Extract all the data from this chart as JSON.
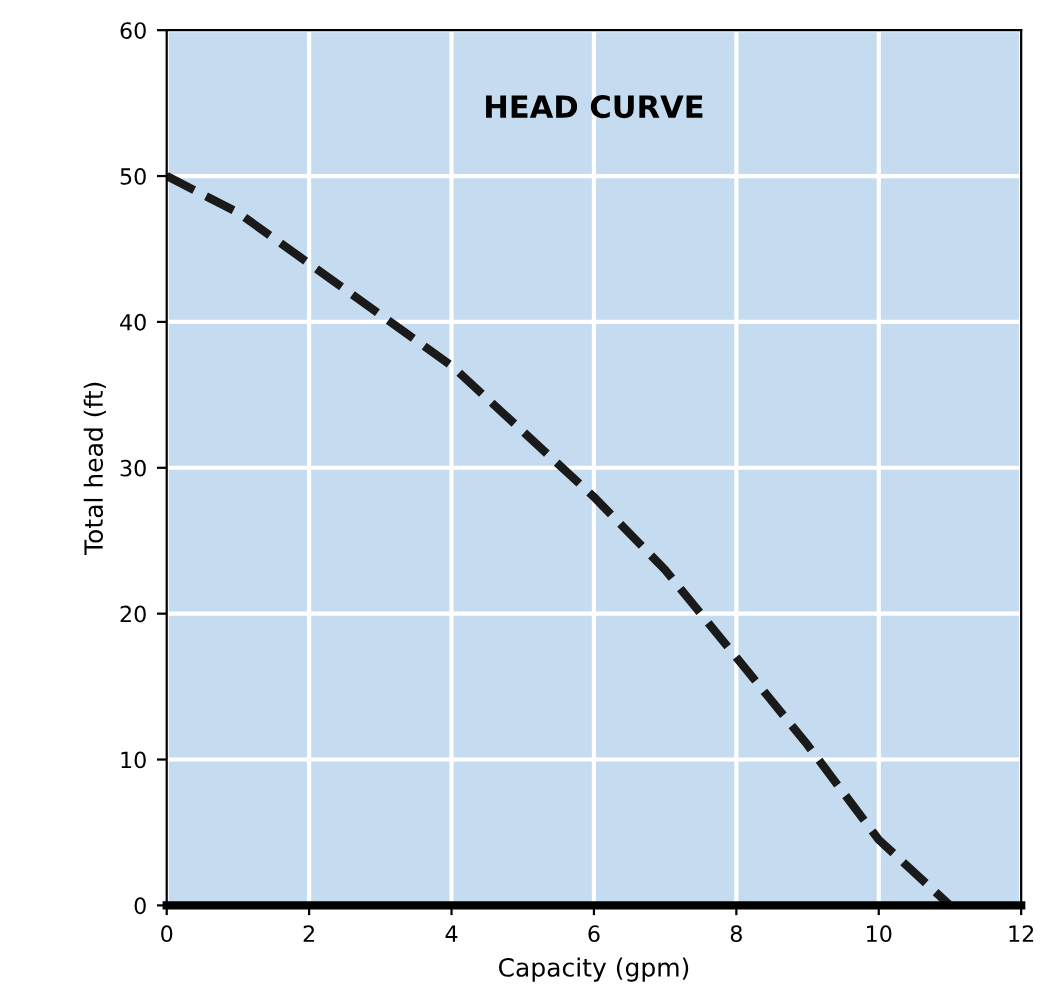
{
  "chart_data": {
    "type": "line",
    "title": "HEAD CURVE",
    "xlabel": "Capacity (gpm)",
    "ylabel": "Total head (ft)",
    "x": [
      0,
      1,
      2,
      3,
      4,
      5,
      6,
      7,
      8,
      9,
      10,
      11
    ],
    "series": [
      {
        "color": "#1a1a1a",
        "values": [
          50,
          47.5,
          44,
          40.5,
          37,
          32.5,
          28,
          23,
          17,
          11,
          4.5,
          0
        ]
      }
    ],
    "xlim": [
      0,
      12
    ],
    "xticks": [
      0,
      2,
      4,
      6,
      8,
      10,
      12
    ],
    "ylim": [
      0,
      60
    ],
    "yticks": [
      0,
      10,
      20,
      30,
      40,
      50,
      60
    ],
    "grid": true,
    "line_style": "dashed"
  }
}
